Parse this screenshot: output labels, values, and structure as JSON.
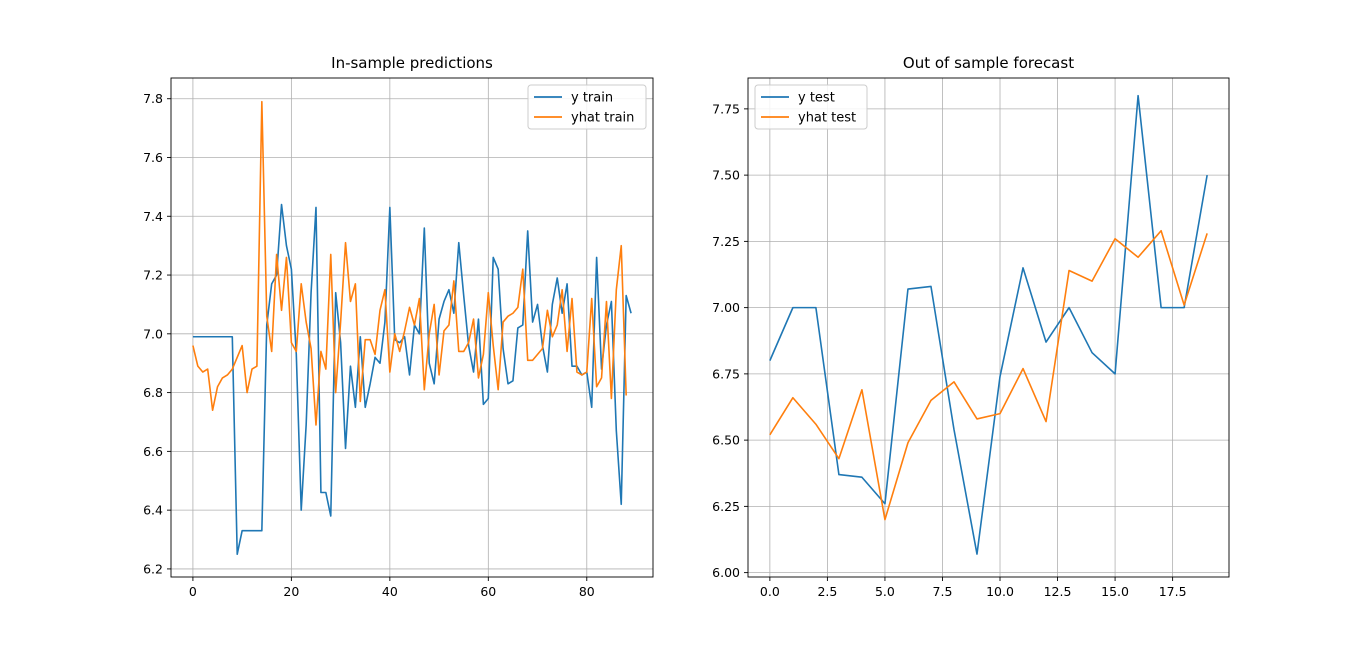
{
  "chart_data": [
    {
      "type": "line",
      "title": "In-sample predictions",
      "xlabel": "",
      "ylabel": "",
      "xlim": [
        -4.45,
        93.45
      ],
      "ylim": [
        6.1725,
        7.8705
      ],
      "xticks": [
        0,
        20,
        40,
        60,
        80
      ],
      "xtick_labels": [
        "0",
        "20",
        "40",
        "60",
        "80"
      ],
      "yticks": [
        6.2,
        6.4,
        6.6,
        6.8,
        7.0,
        7.2,
        7.4,
        7.6,
        7.8
      ],
      "ytick_labels": [
        "6.2",
        "6.4",
        "6.6",
        "6.8",
        "7.0",
        "7.2",
        "7.4",
        "7.6",
        "7.8"
      ],
      "grid": true,
      "legend": "upper right",
      "x_start": 0,
      "series": [
        {
          "name": "y train",
          "color": "#1f77b4",
          "values": [
            6.99,
            6.99,
            6.99,
            6.99,
            6.99,
            6.99,
            6.99,
            6.99,
            6.99,
            6.25,
            6.33,
            6.33,
            6.33,
            6.33,
            6.33,
            7.03,
            7.17,
            7.2,
            7.44,
            7.3,
            7.22,
            6.93,
            6.4,
            6.69,
            7.14,
            7.43,
            6.46,
            6.46,
            6.38,
            7.14,
            6.97,
            6.61,
            6.89,
            6.75,
            6.99,
            6.75,
            6.83,
            6.92,
            6.9,
            7.04,
            7.43,
            6.98,
            6.97,
            6.99,
            6.86,
            7.03,
            7.0,
            7.36,
            6.9,
            6.83,
            7.05,
            7.11,
            7.15,
            7.07,
            7.31,
            7.13,
            6.96,
            6.87,
            7.05,
            6.76,
            6.78,
            7.26,
            7.22,
            6.95,
            6.83,
            6.84,
            7.02,
            7.03,
            7.35,
            7.04,
            7.1,
            6.96,
            6.87,
            7.1,
            7.19,
            7.07,
            7.17,
            6.89,
            6.89,
            6.86,
            6.87,
            6.75,
            7.26,
            6.88,
            7.03,
            7.11,
            6.67,
            6.42,
            7.13,
            7.07
          ]
        },
        {
          "name": "yhat train",
          "color": "#ff7f0e",
          "values": [
            6.96,
            6.89,
            6.87,
            6.88,
            6.74,
            6.82,
            6.85,
            6.86,
            6.88,
            6.92,
            6.96,
            6.8,
            6.88,
            6.89,
            7.79,
            7.06,
            6.94,
            7.27,
            7.08,
            7.26,
            6.97,
            6.94,
            7.17,
            7.04,
            6.95,
            6.69,
            6.94,
            6.88,
            7.27,
            6.8,
            7.04,
            7.31,
            7.11,
            7.17,
            6.77,
            6.98,
            6.98,
            6.93,
            7.08,
            7.15,
            6.87,
            7.0,
            6.94,
            7.01,
            7.09,
            7.03,
            7.12,
            6.81,
            7.0,
            7.1,
            6.86,
            7.01,
            7.03,
            7.18,
            6.94,
            6.94,
            6.97,
            7.05,
            6.85,
            6.93,
            7.14,
            6.96,
            6.81,
            7.04,
            7.06,
            7.07,
            7.09,
            7.22,
            6.91,
            6.91,
            6.93,
            6.95,
            7.08,
            6.99,
            7.03,
            7.15,
            6.94,
            7.12,
            6.87,
            6.86,
            6.87,
            7.12,
            6.82,
            6.85,
            7.11,
            6.78,
            7.15,
            7.3,
            6.79
          ]
        }
      ]
    },
    {
      "type": "line",
      "title": "Out of sample forecast",
      "xlabel": "",
      "ylabel": "",
      "xlim": [
        -0.95,
        19.95
      ],
      "ylim": [
        5.9835,
        7.8665
      ],
      "xticks": [
        0,
        2.5,
        5,
        7.5,
        10,
        12.5,
        15,
        17.5
      ],
      "xtick_labels": [
        "0.0",
        "2.5",
        "5.0",
        "7.5",
        "10.0",
        "12.5",
        "15.0",
        "17.5"
      ],
      "yticks": [
        6.0,
        6.25,
        6.5,
        6.75,
        7.0,
        7.25,
        7.5,
        7.75
      ],
      "ytick_labels": [
        "6.00",
        "6.25",
        "6.50",
        "6.75",
        "7.00",
        "7.25",
        "7.50",
        "7.75"
      ],
      "grid": true,
      "legend": "upper left",
      "x_start": 0,
      "series": [
        {
          "name": "y test",
          "color": "#1f77b4",
          "values": [
            6.8,
            7.0,
            7.0,
            6.37,
            6.36,
            6.26,
            7.07,
            7.08,
            6.54,
            6.07,
            6.74,
            7.15,
            6.87,
            7.0,
            6.83,
            6.75,
            7.8,
            7.0,
            7.0,
            7.5
          ]
        },
        {
          "name": "yhat test",
          "color": "#ff7f0e",
          "values": [
            6.52,
            6.66,
            6.56,
            6.43,
            6.69,
            6.2,
            6.49,
            6.65,
            6.72,
            6.58,
            6.6,
            6.77,
            6.57,
            7.14,
            7.1,
            7.26,
            7.19,
            7.29,
            7.01,
            7.28
          ]
        }
      ]
    }
  ]
}
